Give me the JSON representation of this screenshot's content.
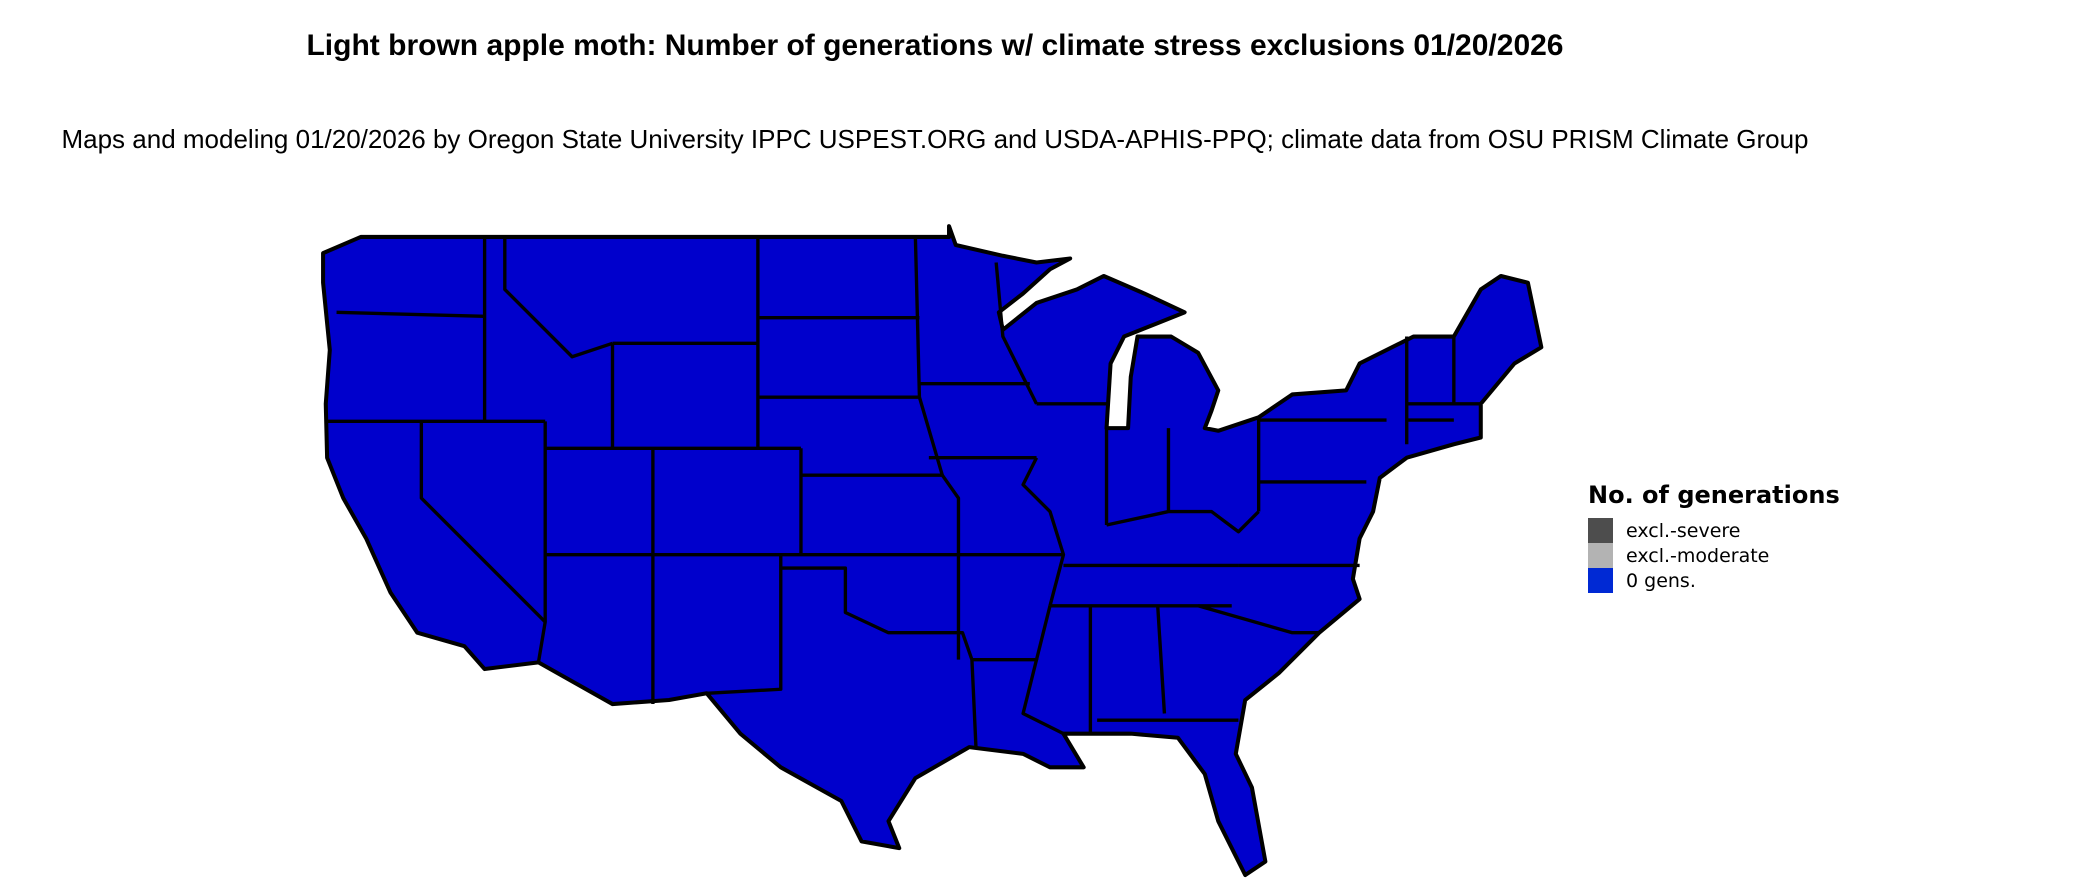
{
  "title": "Light brown apple moth: Number of generations w/ climate stress exclusions 01/20/2026",
  "subtitle": "Maps and modeling 01/20/2026 by Oregon State University IPPC USPEST.ORG and USDA-APHIS-PPQ; climate data from OSU PRISM Climate Group",
  "map": {
    "region": "Contiguous United States",
    "fill_color": "#0000cc",
    "border_color": "#000000"
  },
  "legend": {
    "title": "No. of generations",
    "items": [
      {
        "label": "excl.-severe",
        "color": "#4d4d4d"
      },
      {
        "label": "excl.-moderate",
        "color": "#b3b3b3"
      },
      {
        "label": "0 gens.",
        "color": "#0029d4"
      }
    ]
  }
}
